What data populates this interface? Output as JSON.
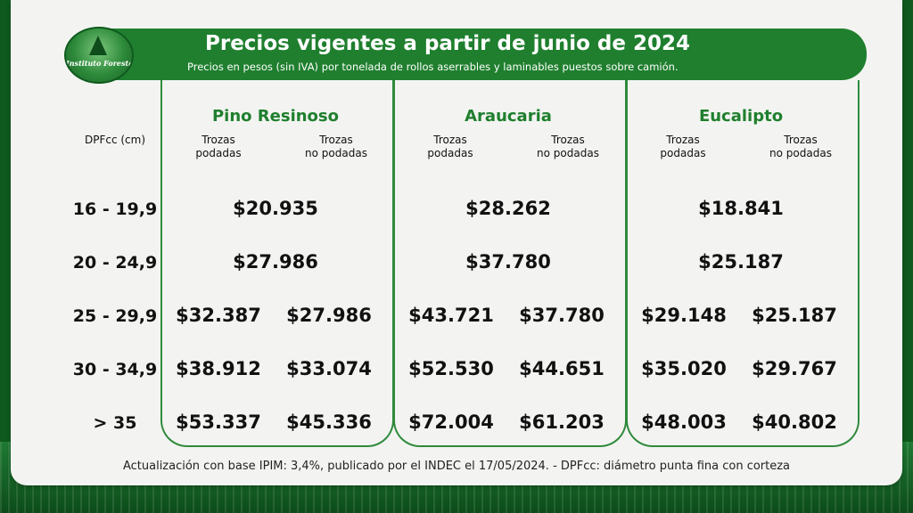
{
  "header": {
    "title": "Precios vigentes a partir de junio de 2024",
    "subtitle": "Precios en pesos (sin IVA) por tonelada de rollos aserrables y laminables puestos sobre camión."
  },
  "logo": {
    "text": "Instituto Forestal"
  },
  "dpf_label": "DPFcc (cm)",
  "rows": [
    "16 - 19,9",
    "20 - 24,9",
    "25 - 29,9",
    "30 - 34,9",
    "> 35"
  ],
  "subheaders": {
    "podadas": "Trozas\npodadas",
    "no_podadas": "Trozas\nno podadas"
  },
  "species": [
    {
      "name": "Pino Resinoso",
      "merged": [
        "$20.935",
        "$27.986"
      ],
      "podadas": [
        "$32.387",
        "$38.912",
        "$53.337"
      ],
      "no_podadas": [
        "$27.986",
        "$33.074",
        "$45.336"
      ]
    },
    {
      "name": "Araucaria",
      "merged": [
        "$28.262",
        "$37.780"
      ],
      "podadas": [
        "$43.721",
        "$52.530",
        "$72.004"
      ],
      "no_podadas": [
        "$37.780",
        "$44.651",
        "$61.203"
      ]
    },
    {
      "name": "Eucalipto",
      "merged": [
        "$18.841",
        "$25.187"
      ],
      "podadas": [
        "$29.148",
        "$35.020",
        "$48.003"
      ],
      "no_podadas": [
        "$25.187",
        "$29.767",
        "$40.802"
      ]
    }
  ],
  "footer": "Actualización con base IPIM: 3,4%, publicado por el INDEC el 17/05/2024.  -  DPFcc: diámetro punta fina con corteza"
}
